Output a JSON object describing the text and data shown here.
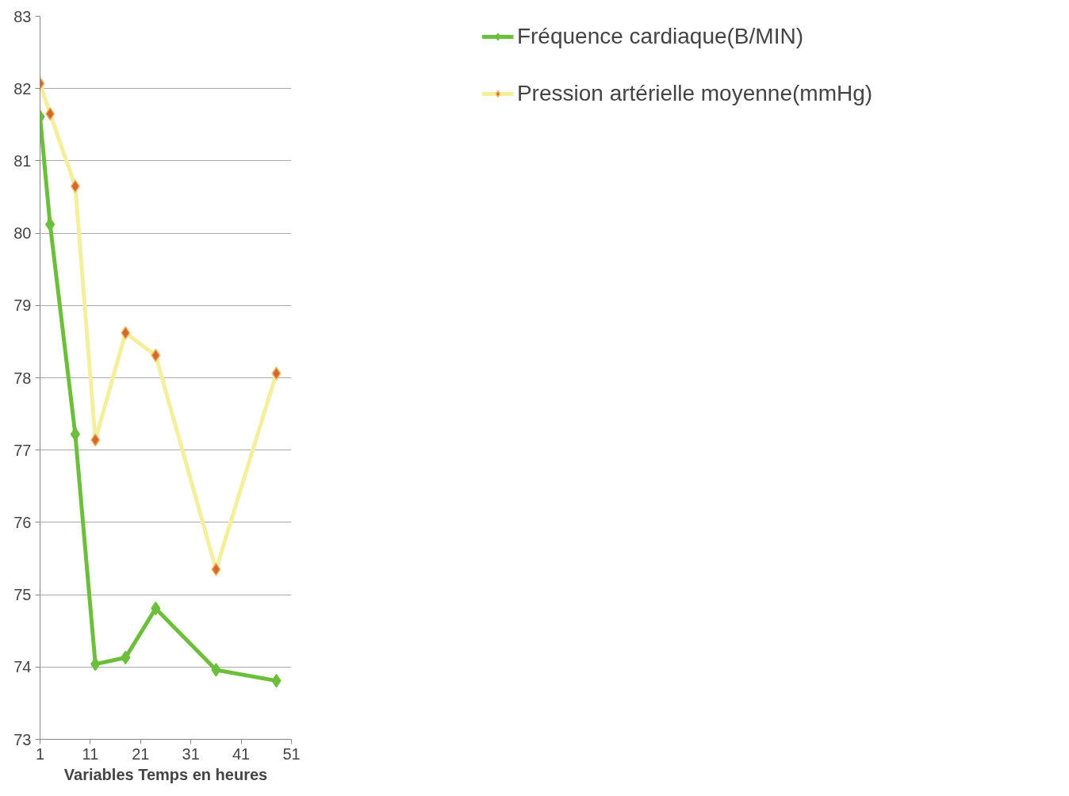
{
  "chart_data": {
    "type": "line",
    "xlabel": "Variables Temps en heures",
    "x": [
      1,
      3,
      8,
      12,
      18,
      24,
      36,
      48
    ],
    "series": [
      {
        "name": "Fréquence cardiaque(B/MIN)",
        "color": "#6cbf3a",
        "values": [
          81.61,
          80.12,
          77.22,
          74.04,
          74.13,
          74.81,
          73.96,
          73.81
        ]
      },
      {
        "name": "Pression artérielle moyenne(mmHg)",
        "color": "#f3ef9c",
        "values": [
          82.07,
          81.65,
          80.65,
          77.14,
          78.62,
          78.31,
          75.35,
          78.06
        ]
      }
    ],
    "xlim": [
      1,
      51
    ],
    "xticks": [
      1,
      11,
      21,
      31,
      41,
      51
    ],
    "ylim": [
      73,
      83
    ],
    "yticks": [
      73,
      74,
      75,
      76,
      77,
      78,
      79,
      80,
      81,
      82,
      83
    ],
    "grid": "y",
    "legend": "right",
    "marker": "diamond",
    "line_style": "solid"
  }
}
